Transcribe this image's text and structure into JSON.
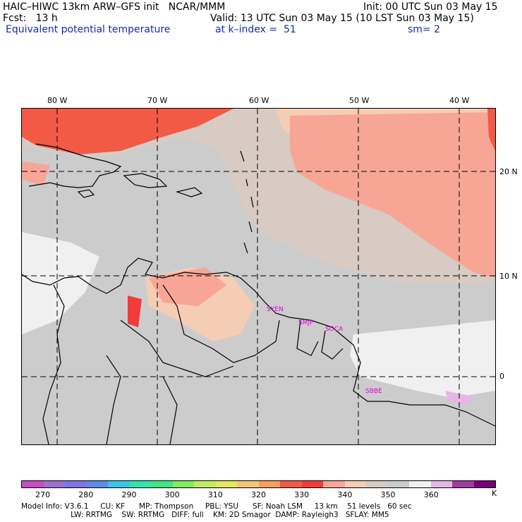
{
  "header": {
    "model": "HAIC–HIWC 13km ARW–GFS init   NCAR/MMM",
    "init": "Init: 00 UTC Sun 03 May 15",
    "fcst": "Fcst:   13 h",
    "valid": "Valid: 13 UTC Sun 03 May 15 (10 LST Sun 03 May 15)",
    "field": "Equivalent potential temperature",
    "level": "at k–index =  51",
    "smooth": "sm= 2"
  },
  "map": {
    "lon_labels": [
      "80 W",
      "70 W",
      "60 W",
      "50 W",
      "40 W"
    ],
    "lat_labels": [
      "20 N",
      "10 N",
      "0"
    ],
    "stations": [
      "SYEN",
      "SMJP",
      "SOCA",
      "SBBE"
    ]
  },
  "colorbar": {
    "colors": [
      "#c44fc4",
      "#a070d0",
      "#7f74e6",
      "#5f8ce8",
      "#3cc4e6",
      "#30e6b0",
      "#40e680",
      "#80ec60",
      "#c0ec60",
      "#e6e660",
      "#f5c678",
      "#f5a05a",
      "#f25a46",
      "#f23c3c",
      "#f7a696",
      "#f5ccb4",
      "#d7cbc4",
      "#cccccc",
      "#f0f0f0",
      "#e6b6e6",
      "#a03ca0",
      "#780078"
    ],
    "labels": [
      "270",
      "280",
      "290",
      "300",
      "310",
      "320",
      "330",
      "340",
      "350",
      "360"
    ],
    "unit": "K"
  },
  "info": {
    "line1": "Model Info: V3.6.1     CU: KF      MP: Thompson     PBL: YSU      SF: Noah LSM     13 km    51 levels   60 sec",
    "line2": "                     LW: RRTMG    SW: RRTMG   DIFF: full    KM: 2D Smagor  DAMP: Rayleigh3   SFLAY: MM5"
  }
}
